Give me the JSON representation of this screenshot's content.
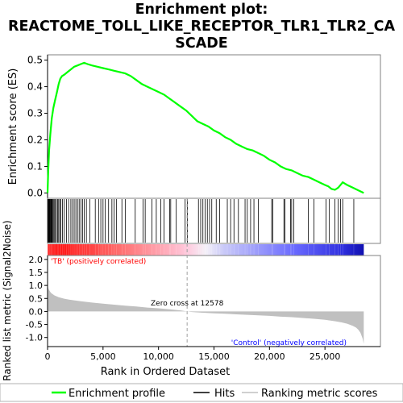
{
  "title_line1": "Enrichment plot:",
  "title_line2": "REACTOME_TOLL_LIKE_RECEPTOR_TLR1_TLR2_CA",
  "title_line3": "SCADE",
  "colors": {
    "es_line": "#00ff00",
    "hits": "#000000",
    "metric_fill": "#c0c0c0",
    "pos_label": "#ff0000",
    "neg_label": "#0000ff",
    "zero_cross_line": "#a0a0a0",
    "axis": "#000000",
    "frame": "#808080"
  },
  "chart_data": {
    "type": "line",
    "x_axis": {
      "label": "Rank in Ordered Dataset",
      "range": [
        0,
        30000
      ],
      "ticks": [
        0,
        5000,
        10000,
        15000,
        20000,
        25000
      ],
      "tick_labels": [
        "0",
        "5,000",
        "10,000",
        "15,000",
        "20,000",
        "25,000"
      ]
    },
    "n_genes": 28500,
    "es_panel": {
      "ylabel": "Enrichment score (ES)",
      "ylim": [
        -0.02,
        0.52
      ],
      "ticks": [
        0.0,
        0.1,
        0.2,
        0.3,
        0.4,
        0.5
      ],
      "tick_labels": [
        "0.0",
        "0.1",
        "0.2",
        "0.3",
        "0.4",
        "0.5"
      ],
      "profile": {
        "x": [
          0,
          60,
          140,
          250,
          380,
          520,
          680,
          850,
          1000,
          1150,
          1300,
          1500,
          1800,
          2100,
          2400,
          2700,
          3000,
          3300,
          3600,
          4000,
          4500,
          5000,
          5500,
          6000,
          6500,
          7000,
          7500,
          8000,
          8500,
          9000,
          9500,
          10000,
          10500,
          11000,
          11500,
          12000,
          12500,
          13000,
          13500,
          14000,
          14500,
          15000,
          15500,
          16000,
          16500,
          17000,
          17500,
          18000,
          18500,
          19000,
          19500,
          20000,
          20500,
          21000,
          21500,
          22000,
          22500,
          23000,
          23500,
          24000,
          24500,
          25000,
          25300,
          25600,
          25900,
          26200,
          26600,
          27000,
          27500,
          28000,
          28500
        ],
        "y": [
          0.0,
          0.08,
          0.16,
          0.22,
          0.28,
          0.32,
          0.35,
          0.38,
          0.41,
          0.43,
          0.44,
          0.445,
          0.455,
          0.465,
          0.475,
          0.48,
          0.485,
          0.49,
          0.485,
          0.48,
          0.475,
          0.47,
          0.465,
          0.46,
          0.455,
          0.45,
          0.44,
          0.425,
          0.41,
          0.4,
          0.39,
          0.38,
          0.37,
          0.355,
          0.34,
          0.325,
          0.31,
          0.29,
          0.27,
          0.26,
          0.25,
          0.235,
          0.225,
          0.21,
          0.2,
          0.185,
          0.175,
          0.165,
          0.16,
          0.15,
          0.14,
          0.125,
          0.115,
          0.1,
          0.09,
          0.085,
          0.075,
          0.065,
          0.06,
          0.05,
          0.04,
          0.03,
          0.025,
          0.015,
          0.012,
          0.02,
          0.04,
          0.03,
          0.02,
          0.01,
          0.0
        ]
      }
    },
    "hits": [
      20,
      60,
      100,
      150,
      200,
      250,
      300,
      350,
      400,
      450,
      520,
      600,
      700,
      800,
      900,
      1000,
      1100,
      1200,
      1350,
      1500,
      1700,
      1900,
      2100,
      2250,
      2400,
      2550,
      2700,
      2850,
      3000,
      3150,
      3300,
      3500,
      3800,
      4300,
      4600,
      4800,
      5000,
      5200,
      5500,
      5800,
      6000,
      6200,
      6700,
      7000,
      7900,
      8600,
      8800,
      9400,
      9800,
      10200,
      10500,
      11000,
      11100,
      11600,
      12400,
      12600,
      13600,
      13800,
      14000,
      14200,
      14400,
      14600,
      14800,
      15200,
      15500,
      16200,
      16500,
      16800,
      17200,
      17800,
      18000,
      18300,
      18600,
      19000,
      20200,
      20300,
      21300,
      21400,
      21900,
      22000,
      22200,
      23500,
      24000,
      25100,
      25400,
      25900,
      26200,
      26400,
      26600,
      27600
    ],
    "metric_panel": {
      "ylabel": "Ranked list metric (Signal2Noise)",
      "ylim": [
        -1.35,
        2.15
      ],
      "ticks": [
        -1.0,
        -0.5,
        0.0,
        0.5,
        1.0,
        1.5,
        2.0
      ],
      "tick_labels": [
        "-1.0",
        "-0.5",
        "0.0",
        "0.5",
        "1.0",
        "1.5",
        "2.0"
      ],
      "curve": {
        "x": [
          0,
          100,
          300,
          600,
          1000,
          1500,
          2000,
          3000,
          4000,
          5000,
          6000,
          7000,
          8000,
          9000,
          10000,
          11000,
          12000,
          12578,
          13000,
          14000,
          15000,
          16000,
          17000,
          18000,
          19000,
          20000,
          21000,
          22000,
          23000,
          24000,
          25000,
          25500,
          26000,
          26500,
          27000,
          27500,
          27800,
          28000,
          28200,
          28400,
          28500
        ],
        "y": [
          1.0,
          0.85,
          0.72,
          0.62,
          0.55,
          0.49,
          0.45,
          0.39,
          0.34,
          0.3,
          0.26,
          0.22,
          0.19,
          0.15,
          0.12,
          0.08,
          0.04,
          0.0,
          -0.02,
          -0.05,
          -0.07,
          -0.09,
          -0.11,
          -0.13,
          -0.15,
          -0.17,
          -0.2,
          -0.22,
          -0.25,
          -0.28,
          -0.32,
          -0.35,
          -0.38,
          -0.42,
          -0.47,
          -0.55,
          -0.62,
          -0.7,
          -0.82,
          -1.05,
          -1.25
        ]
      },
      "zero_cross_label": "Zero cross at 12578",
      "zero_cross_x": 12578,
      "pos_label": "'TB' (positively correlated)",
      "neg_label": "'Control' (negatively correlated)"
    },
    "legend": {
      "placement": "bottom",
      "entries": [
        "Enrichment profile",
        "Hits",
        "Ranking metric scores"
      ]
    }
  }
}
